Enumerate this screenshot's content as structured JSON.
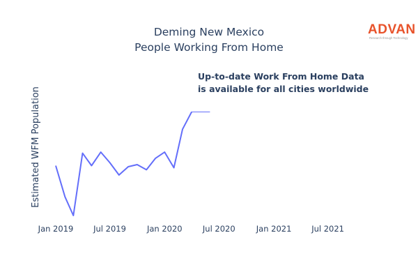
{
  "logo": {
    "name": "ADVAN",
    "tagline": "Research through Technology",
    "color": "#e8532b"
  },
  "annotation": {
    "lines": [
      "Up-to-date Work From Home Data",
      "is available for all cities worldwide"
    ]
  },
  "chart_data": {
    "type": "line",
    "title": [
      "Deming New Mexico",
      "People Working From Home"
    ],
    "xlabel": "",
    "ylabel": "Estimated WFM Population",
    "x_ticks": [
      "Jan 2019",
      "Jul 2019",
      "Jan 2020",
      "Jul 2020",
      "Jan 2021",
      "Jul 2021"
    ],
    "x_tick_dates": [
      "2019-01",
      "2019-07",
      "2020-01",
      "2020-07",
      "2021-01",
      "2021-07"
    ],
    "y_tick_labels": [],
    "ylim": [
      0,
      100
    ],
    "grid": false,
    "series": [
      {
        "color": "#636efa",
        "x": [
          "2019-01",
          "2019-02",
          "2019-03",
          "2019-04",
          "2019-05",
          "2019-06",
          "2019-07",
          "2019-08",
          "2019-09",
          "2019-10",
          "2019-11",
          "2019-12",
          "2020-01",
          "2020-02",
          "2020-03",
          "2020-04",
          "2020-05",
          "2020-06"
        ],
        "values": [
          48,
          18,
          0,
          60,
          48,
          61,
          51,
          39,
          47,
          49,
          44,
          55,
          61,
          46,
          83,
          100,
          100,
          100
        ]
      }
    ]
  }
}
